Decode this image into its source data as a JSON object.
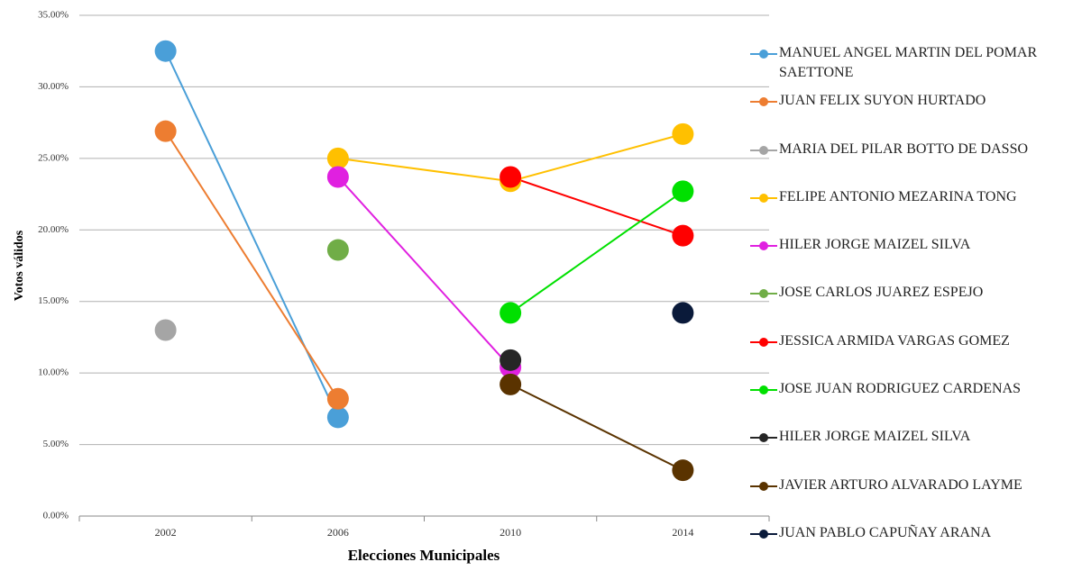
{
  "chart_data": {
    "type": "line",
    "x_label": "Elecciones Municipales",
    "y_label": "Votos válidos",
    "categories": [
      "2002",
      "2006",
      "2010",
      "2014"
    ],
    "ylim": [
      0,
      35
    ],
    "yticks": [
      {
        "value": 0,
        "label": "0.00%"
      },
      {
        "value": 5,
        "label": "5.00%"
      },
      {
        "value": 10,
        "label": "10.00%"
      },
      {
        "value": 15,
        "label": "15.00%"
      },
      {
        "value": 20,
        "label": "20.00%"
      },
      {
        "value": 25,
        "label": "25.00%"
      },
      {
        "value": 30,
        "label": "30.00%"
      },
      {
        "value": 35,
        "label": "35.00%"
      }
    ],
    "grid": true,
    "legend": "right",
    "series": [
      {
        "name": "MANUEL ANGEL MARTIN DEL POMAR SAETTONE",
        "color": "#4a9fd8",
        "values": [
          32.5,
          6.9,
          null,
          null
        ]
      },
      {
        "name": "JUAN FELIX SUYON HURTADO",
        "color": "#ed7d31",
        "values": [
          26.9,
          8.2,
          null,
          null
        ]
      },
      {
        "name": "MARIA DEL PILAR BOTTO DE DASSO",
        "color": "#a5a5a5",
        "values": [
          13.0,
          null,
          null,
          null
        ]
      },
      {
        "name": "FELIPE ANTONIO MEZARINA TONG",
        "color": "#ffc000",
        "values": [
          null,
          25.0,
          23.4,
          26.7
        ]
      },
      {
        "name": "HILER JORGE MAIZEL SILVA",
        "color": "#e020e0",
        "values": [
          null,
          23.7,
          10.4,
          null
        ]
      },
      {
        "name": "JOSE CARLOS JUAREZ ESPEJO",
        "color": "#70ad47",
        "values": [
          null,
          18.6,
          null,
          null
        ]
      },
      {
        "name": "JESSICA ARMIDA VARGAS GOMEZ",
        "color": "#ff0000",
        "values": [
          null,
          null,
          23.7,
          19.6
        ]
      },
      {
        "name": "JOSE JUAN RODRIGUEZ CARDENAS",
        "color": "#00e000",
        "values": [
          null,
          null,
          14.2,
          22.7
        ]
      },
      {
        "name": "HILER JORGE MAIZEL SILVA",
        "color": "#262626",
        "values": [
          null,
          null,
          10.9,
          null
        ]
      },
      {
        "name": "JAVIER ARTURO ALVARADO LAYME",
        "color": "#5a3300",
        "values": [
          null,
          null,
          9.2,
          3.2
        ]
      },
      {
        "name": "JUAN PABLO CAPUÑAY ARANA",
        "color": "#0a1a3a",
        "values": [
          null,
          null,
          null,
          14.2
        ]
      }
    ]
  }
}
